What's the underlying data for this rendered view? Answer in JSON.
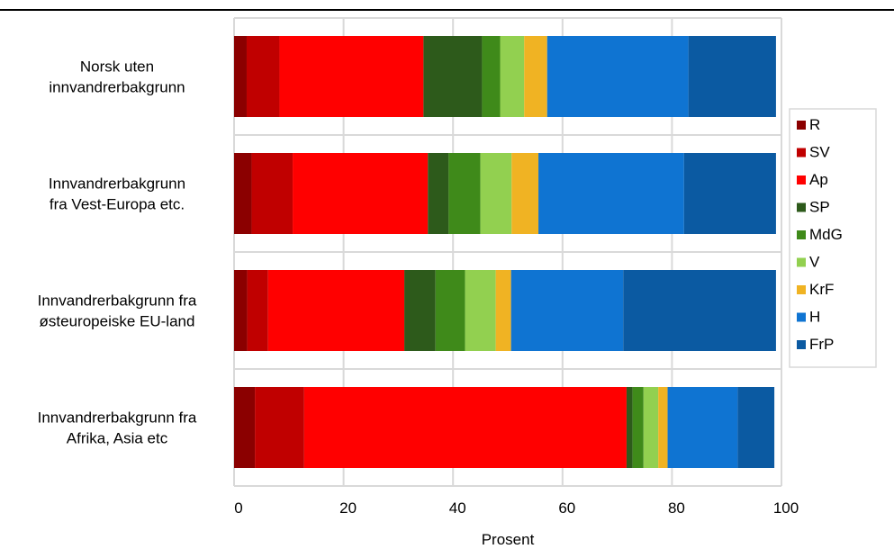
{
  "chart_data": {
    "type": "bar",
    "orientation": "horizontal",
    "stacked": true,
    "title": "",
    "xlabel": "Prosent",
    "ylabel": "",
    "xlim": [
      0,
      100
    ],
    "xticks": [
      0,
      20,
      40,
      60,
      80,
      100
    ],
    "grid": true,
    "legend_position": "right",
    "categories": [
      [
        "Norsk uten",
        "innvandrerbakgrunn"
      ],
      [
        "Innvandrerbakgrunn",
        "fra Vest-Europa etc."
      ],
      [
        "Innvandrerbakgrunn fra",
        "østeuropeiske EU-land"
      ],
      [
        "Innvandrerbakgrunn fra",
        "Afrika, Asia etc"
      ]
    ],
    "series": [
      {
        "name": "R",
        "color": "#8b0000",
        "values": [
          2.3,
          3.2,
          2.4,
          3.8
        ]
      },
      {
        "name": "SV",
        "color": "#c00000",
        "values": [
          6.0,
          7.5,
          3.8,
          9.0
        ]
      },
      {
        "name": "Ap",
        "color": "#ff0000",
        "values": [
          26.3,
          24.7,
          24.9,
          58.9
        ]
      },
      {
        "name": "SP",
        "color": "#2d5a1b",
        "values": [
          10.7,
          3.8,
          5.7,
          1.1
        ]
      },
      {
        "name": "MdG",
        "color": "#3f8a1a",
        "values": [
          3.3,
          5.8,
          5.4,
          2.0
        ]
      },
      {
        "name": "V",
        "color": "#92d050",
        "values": [
          4.4,
          5.7,
          5.6,
          2.7
        ]
      },
      {
        "name": "KrF",
        "color": "#f0b323",
        "values": [
          4.2,
          4.9,
          2.8,
          1.7
        ]
      },
      {
        "name": "H",
        "color": "#0f74d2",
        "values": [
          25.8,
          26.6,
          20.5,
          12.8
        ]
      },
      {
        "name": "FrP",
        "color": "#0b5aa2",
        "values": [
          16.0,
          16.8,
          27.9,
          6.7
        ]
      }
    ]
  }
}
